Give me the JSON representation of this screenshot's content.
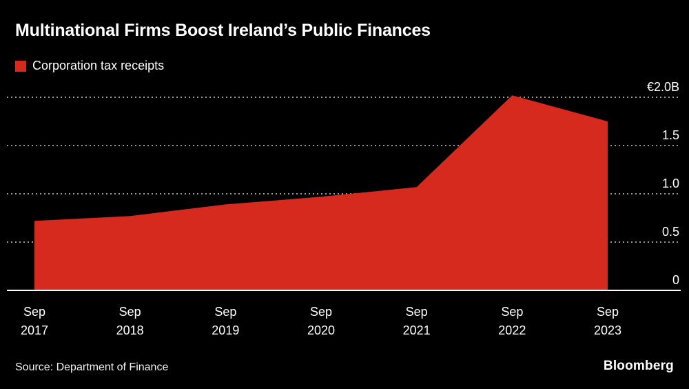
{
  "header": {
    "title": "Multinational Firms Boost Ireland’s Public Finances"
  },
  "legend": {
    "items": [
      {
        "label": "Corporation tax receipts",
        "color": "#d62a1e"
      }
    ]
  },
  "chart_data": {
    "type": "area",
    "title": "Multinational Firms Boost Ireland’s Public Finances",
    "categories": [
      "Sep 2017",
      "Sep 2018",
      "Sep 2019",
      "Sep 2020",
      "Sep 2021",
      "Sep 2022",
      "Sep 2023"
    ],
    "series": [
      {
        "name": "Corporation tax receipts",
        "values": [
          0.72,
          0.77,
          0.89,
          0.97,
          1.07,
          2.02,
          1.75
        ]
      }
    ],
    "values": [
      0.72,
      0.77,
      0.89,
      0.97,
      1.07,
      2.02,
      1.75
    ],
    "unit": "EUR billions",
    "xlabel": "",
    "ylabel": "",
    "ylim": [
      0,
      2.0
    ],
    "y_ticks": [
      {
        "value": 0,
        "label": "0"
      },
      {
        "value": 0.5,
        "label": "0.5"
      },
      {
        "value": 1.0,
        "label": "1.0"
      },
      {
        "value": 1.5,
        "label": "1.5"
      },
      {
        "value": 2.0,
        "label": "€2.0B"
      }
    ],
    "grid": "dotted horizontal, zero baseline solid",
    "legend_position": "top-left"
  },
  "footer": {
    "source": "Source: Department of Finance",
    "logo": "Bloomberg"
  },
  "colors": {
    "background": "#000000",
    "series_red": "#d62a1e",
    "grid": "#9a9a9a",
    "text": "#ffffff"
  }
}
